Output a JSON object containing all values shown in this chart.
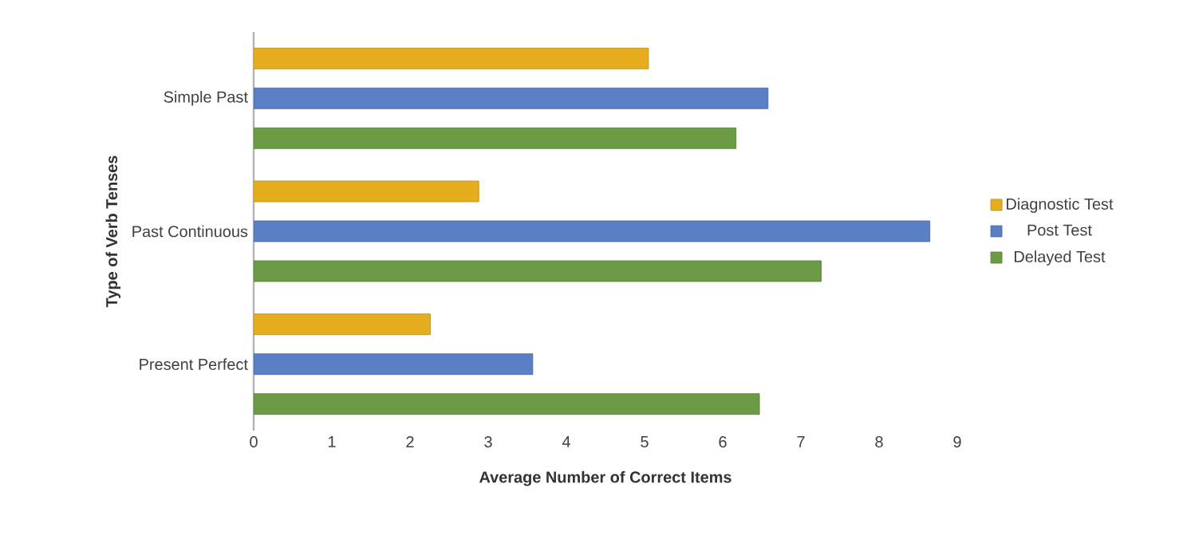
{
  "chart_data": {
    "type": "bar",
    "orientation": "horizontal",
    "xlabel": "Average Number of Correct Items",
    "ylabel": "Type of Verb Tenses",
    "categories": [
      "Simple Past",
      "Past Continuous",
      "Present Perfect"
    ],
    "series": [
      {
        "name": "Diagnostic Test",
        "color": "#e6ad1e",
        "values": [
          5.05,
          2.88,
          2.26
        ]
      },
      {
        "name": "Post Test",
        "color": "#5b7fc5",
        "values": [
          6.58,
          8.65,
          3.57
        ]
      },
      {
        "name": "Delayed Test",
        "color": "#6b9b45",
        "values": [
          6.17,
          7.26,
          6.47
        ]
      }
    ],
    "xlim": [
      0,
      9
    ],
    "xticks": [
      0,
      1,
      2,
      3,
      4,
      5,
      6,
      7,
      8,
      9
    ],
    "grid": false,
    "legend": "right"
  }
}
